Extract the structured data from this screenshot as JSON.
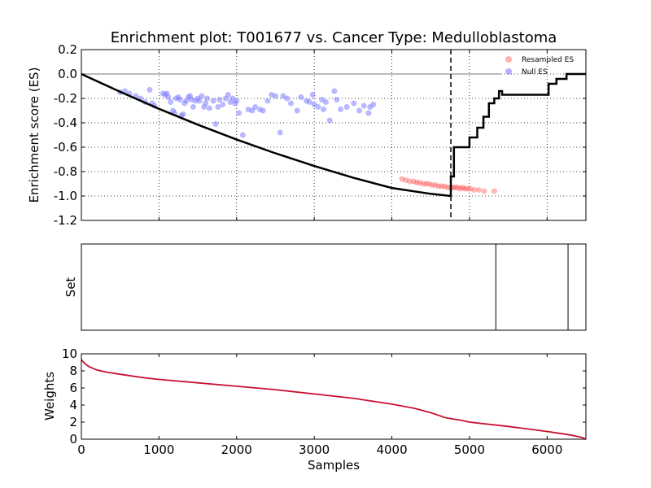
{
  "chart_data": [
    {
      "type": "line",
      "title": "Enrichment plot: T001677 vs. Cancer Type: Medulloblastoma",
      "xlabel": "",
      "ylabel": "Enrichment score (ES)",
      "xlim": [
        0,
        6500
      ],
      "ylim": [
        -1.2,
        0.2
      ],
      "yticks": [
        "0.2",
        "0.0",
        "-0.2",
        "-0.4",
        "-0.6",
        "-0.8",
        "-1.0",
        "-1.2"
      ],
      "xticks": [
        1000,
        2000,
        3000,
        4000,
        5000,
        6000
      ],
      "grid": true,
      "legend_position": "top-right",
      "legend": [
        {
          "label": "Resampled ES",
          "color": "#ff7f7f"
        },
        {
          "label": "Null ES",
          "color": "#8080ff"
        }
      ],
      "vline_x": 4760,
      "series": [
        {
          "name": "",
          "color": "#000000",
          "x": [
            0,
            500,
            1000,
            1500,
            2000,
            2500,
            3000,
            3500,
            4000,
            4500,
            4760,
            4760,
            4800,
            4800,
            5000,
            5000,
            5100,
            5100,
            5180,
            5180,
            5250,
            5250,
            5320,
            5320,
            5380,
            5380,
            5420,
            5420,
            6020,
            6020,
            6120,
            6120,
            6250,
            6250,
            6500
          ],
          "y": [
            0,
            -0.146,
            -0.285,
            -0.415,
            -0.537,
            -0.65,
            -0.754,
            -0.849,
            -0.934,
            -0.982,
            -1.0,
            -0.84,
            -0.84,
            -0.6,
            -0.6,
            -0.52,
            -0.52,
            -0.44,
            -0.44,
            -0.35,
            -0.35,
            -0.24,
            -0.24,
            -0.2,
            -0.2,
            -0.14,
            -0.14,
            -0.17,
            -0.17,
            -0.08,
            -0.08,
            -0.04,
            -0.04,
            0,
            0
          ]
        },
        {
          "name": "Null ES",
          "type": "scatter",
          "color": "#8080ff",
          "x": [
            500,
            560,
            620,
            700,
            760,
            820,
            880,
            910,
            940,
            1050,
            1080,
            1100,
            1120,
            1150,
            1180,
            1200,
            1220,
            1250,
            1270,
            1290,
            1310,
            1330,
            1350,
            1380,
            1400,
            1420,
            1440,
            1470,
            1500,
            1520,
            1550,
            1580,
            1600,
            1620,
            1650,
            1700,
            1730,
            1760,
            1780,
            1820,
            1860,
            1890,
            1920,
            1950,
            1980,
            2000,
            2030,
            2080,
            2150,
            2200,
            2240,
            2300,
            2340,
            2400,
            2450,
            2500,
            2560,
            2600,
            2650,
            2700,
            2780,
            2830,
            2900,
            2940,
            2980,
            3000,
            3050,
            3100,
            3120,
            3150,
            3200,
            3260,
            3290,
            3340,
            3420,
            3510,
            3580,
            3640,
            3700,
            3720,
            3760
          ],
          "y": [
            -0.15,
            -0.14,
            -0.16,
            -0.18,
            -0.2,
            -0.23,
            -0.13,
            -0.24,
            -0.26,
            -0.16,
            -0.17,
            -0.16,
            -0.19,
            -0.23,
            -0.3,
            -0.32,
            -0.2,
            -0.19,
            -0.21,
            -0.34,
            -0.33,
            -0.24,
            -0.22,
            -0.19,
            -0.18,
            -0.21,
            -0.27,
            -0.22,
            -0.2,
            -0.22,
            -0.18,
            -0.27,
            -0.24,
            -0.2,
            -0.28,
            -0.22,
            -0.41,
            -0.27,
            -0.21,
            -0.25,
            -0.2,
            -0.17,
            -0.23,
            -0.2,
            -0.24,
            -0.22,
            -0.32,
            -0.5,
            -0.29,
            -0.3,
            -0.27,
            -0.29,
            -0.3,
            -0.22,
            -0.17,
            -0.18,
            -0.48,
            -0.18,
            -0.2,
            -0.24,
            -0.3,
            -0.19,
            -0.22,
            -0.23,
            -0.17,
            -0.25,
            -0.27,
            -0.21,
            -0.29,
            -0.23,
            -0.38,
            -0.14,
            -0.21,
            -0.29,
            -0.27,
            -0.24,
            -0.3,
            -0.26,
            -0.32,
            -0.27,
            -0.25
          ]
        },
        {
          "name": "Resampled ES",
          "type": "scatter",
          "color": "#ff3030",
          "x": [
            4130,
            4180,
            4230,
            4280,
            4320,
            4360,
            4400,
            4440,
            4480,
            4520,
            4560,
            4600,
            4640,
            4680,
            4720,
            4760,
            4790,
            4820,
            4850,
            4880,
            4910,
            4940,
            4970,
            5010,
            5060,
            5120,
            5190,
            5320
          ],
          "y": [
            -0.86,
            -0.87,
            -0.88,
            -0.88,
            -0.89,
            -0.89,
            -0.9,
            -0.9,
            -0.9,
            -0.91,
            -0.91,
            -0.92,
            -0.92,
            -0.92,
            -0.93,
            -0.93,
            -0.93,
            -0.93,
            -0.93,
            -0.94,
            -0.93,
            -0.94,
            -0.94,
            -0.94,
            -0.95,
            -0.95,
            -0.96,
            -0.96
          ]
        }
      ]
    },
    {
      "type": "line",
      "title": "",
      "xlabel": "",
      "ylabel": "Set",
      "xlim": [
        0,
        6500
      ],
      "set_hits_x": [
        5340,
        6270
      ]
    },
    {
      "type": "line",
      "title": "",
      "xlabel": "Samples",
      "ylabel": "Weights",
      "xlim": [
        0,
        6500
      ],
      "ylim": [
        0,
        10
      ],
      "xticks": [
        "0",
        "1000",
        "2000",
        "3000",
        "4000",
        "5000",
        "6000"
      ],
      "yticks": [
        "0",
        "2",
        "4",
        "6",
        "8",
        "10"
      ],
      "series": [
        {
          "name": "",
          "color": "#c8102e",
          "x": [
            0,
            50,
            100,
            200,
            300,
            500,
            800,
            1000,
            1500,
            2000,
            2500,
            3000,
            3500,
            4000,
            4300,
            4500,
            4700,
            4900,
            5000,
            5500,
            6000,
            6300,
            6450,
            6500
          ],
          "y": [
            9.3,
            8.8,
            8.5,
            8.1,
            7.9,
            7.6,
            7.2,
            7.0,
            6.6,
            6.2,
            5.8,
            5.3,
            4.8,
            4.1,
            3.6,
            3.1,
            2.5,
            2.2,
            2.0,
            1.5,
            0.9,
            0.5,
            0.2,
            0.0
          ]
        }
      ]
    }
  ]
}
